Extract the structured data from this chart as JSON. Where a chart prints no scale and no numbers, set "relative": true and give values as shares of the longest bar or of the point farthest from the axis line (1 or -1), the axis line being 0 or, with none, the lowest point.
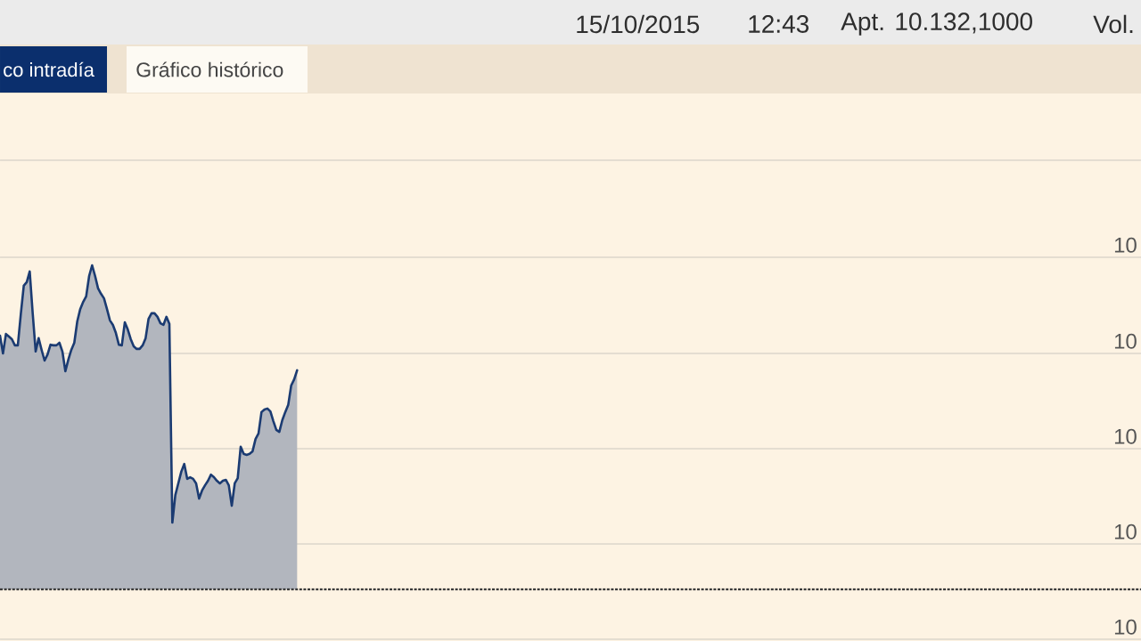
{
  "chart_data": {
    "type": "area",
    "relative": true,
    "color": "#1b3b72",
    "categories": [
      null,
      null,
      null,
      null,
      null,
      null,
      null,
      null,
      null,
      null,
      null,
      null,
      null,
      null,
      null,
      null,
      null,
      null,
      null,
      null,
      null,
      null,
      null,
      null,
      null,
      null,
      null,
      null,
      null,
      null,
      null,
      null,
      null,
      null,
      null,
      null,
      null,
      null,
      null,
      null,
      null,
      null,
      null,
      null,
      null,
      null,
      null,
      null,
      null,
      null,
      null,
      null,
      null,
      null,
      null,
      null,
      null,
      null,
      null,
      null,
      null,
      null,
      null,
      null,
      null,
      null,
      null,
      null,
      null,
      null,
      null,
      null,
      null,
      null,
      null,
      null,
      null,
      null,
      null,
      null,
      null,
      null,
      null,
      null,
      null,
      null,
      null,
      null,
      null,
      null,
      null,
      null,
      null,
      null,
      null,
      null,
      null,
      null,
      null,
      null,
      null,
      null,
      null,
      null,
      null,
      null,
      null,
      null,
      null,
      null,
      null,
      null,
      null,
      null,
      null,
      null,
      null,
      null,
      null,
      null,
      null,
      null,
      null,
      null,
      null,
      null,
      null,
      null,
      null,
      null,
      null,
      null,
      null,
      null,
      null,
      null,
      null,
      null,
      null,
      null,
      null,
      null,
      null,
      null,
      null,
      null,
      null,
      null,
      null,
      null,
      null,
      null,
      null,
      null,
      null,
      null,
      null,
      null,
      null,
      null,
      null,
      null,
      null,
      null,
      null,
      null,
      null,
      null,
      null,
      null,
      null,
      null,
      null,
      null,
      null,
      null,
      null,
      null,
      null,
      null,
      null,
      null,
      null,
      null,
      null,
      null,
      null,
      null,
      null,
      null,
      null,
      null,
      null,
      null,
      null,
      null,
      null,
      null,
      null,
      null,
      null,
      null,
      null,
      null,
      null,
      null,
      null,
      null,
      null,
      null,
      null,
      null,
      null,
      null,
      null,
      null,
      null,
      null,
      null,
      null,
      null,
      null,
      null,
      null,
      null,
      null,
      null,
      null,
      null,
      null,
      null,
      null,
      null,
      null,
      null,
      null,
      null,
      null,
      null,
      null,
      null,
      null,
      null,
      null,
      null,
      null,
      null,
      null,
      null,
      null,
      null,
      null,
      null,
      null,
      null,
      null,
      null,
      null,
      null,
      null,
      null,
      null,
      null,
      null,
      null,
      null,
      null,
      null,
      null,
      null,
      null,
      null,
      null,
      null,
      null,
      null,
      null,
      null,
      null,
      null,
      null,
      null,
      null,
      null,
      null,
      null,
      null,
      null,
      null,
      null,
      null,
      null,
      null,
      null,
      null,
      null,
      null,
      null,
      null,
      null,
      null,
      null,
      null,
      null,
      null,
      null,
      null,
      null,
      null,
      null,
      null,
      null,
      null,
      null,
      null,
      null,
      null,
      null,
      null,
      null,
      null,
      null,
      null,
      null,
      null,
      null,
      null,
      null,
      null,
      null,
      null,
      null,
      null,
      null,
      null,
      null,
      null,
      null,
      null,
      null,
      null,
      null,
      null,
      null,
      null,
      null,
      null,
      null,
      null,
      null,
      null,
      null,
      null,
      null,
      null,
      null,
      null,
      null,
      null,
      null,
      null,
      null,
      null,
      null,
      null,
      null,
      null,
      null,
      null,
      null,
      null,
      null,
      null,
      null,
      null,
      null,
      null,
      null,
      null,
      null,
      null,
      null,
      null,
      null,
      null
    ],
    "values": [
      0.783,
      0.728,
      0.788,
      0.78,
      0.772,
      0.753,
      0.753,
      0.849,
      0.937,
      0.948,
      0.981,
      0.852,
      0.734,
      0.775,
      0.739,
      0.706,
      0.725,
      0.755,
      0.753,
      0.753,
      0.761,
      0.734,
      0.673,
      0.709,
      0.739,
      0.761,
      0.827,
      0.865,
      0.887,
      0.904,
      0.967,
      1.0,
      0.967,
      0.929,
      0.912,
      0.898,
      0.865,
      0.83,
      0.816,
      0.791,
      0.755,
      0.753,
      0.824,
      0.802,
      0.772,
      0.75,
      0.742,
      0.742,
      0.753,
      0.775,
      0.835,
      0.852,
      0.852,
      0.841,
      0.821,
      0.816,
      0.841,
      0.819,
      0.206,
      0.291,
      0.327,
      0.363,
      0.387,
      0.341,
      0.346,
      0.341,
      0.327,
      0.28,
      0.305,
      0.321,
      0.335,
      0.354,
      0.346,
      0.335,
      0.327,
      0.335,
      0.338,
      0.321,
      0.258,
      0.327,
      0.343,
      0.44,
      0.418,
      0.415,
      0.418,
      0.426,
      0.464,
      0.481,
      0.547,
      0.555,
      0.558,
      0.549,
      0.519,
      0.492,
      0.486,
      0.522,
      0.547,
      0.569,
      0.629,
      0.648,
      0.676,
      null,
      null,
      null,
      null,
      null,
      null,
      null,
      null,
      null,
      null,
      null,
      null,
      null,
      null,
      null,
      null,
      null,
      null,
      null,
      null,
      null,
      null,
      null,
      null,
      null,
      null,
      null,
      null,
      null,
      null,
      null,
      null,
      null,
      null,
      null,
      null,
      null,
      null,
      null,
      null,
      null,
      null,
      null,
      null,
      null,
      null,
      null,
      null,
      null,
      null,
      null,
      null,
      null,
      null,
      null,
      null,
      null,
      null,
      null,
      null,
      null,
      null,
      null,
      null,
      null,
      null,
      null,
      null,
      null,
      null,
      null,
      null,
      null,
      null,
      null,
      null,
      null,
      null,
      null,
      null,
      null,
      null,
      null,
      null,
      null,
      null,
      null,
      null,
      null,
      null,
      null,
      null,
      null,
      null,
      null,
      null,
      null,
      null,
      null,
      null,
      null,
      null,
      null,
      null,
      null,
      null,
      null,
      null,
      null,
      null,
      null,
      null,
      null,
      null,
      null,
      null,
      null,
      null,
      null,
      null,
      null,
      null,
      null,
      null,
      null,
      null,
      null,
      null,
      null,
      null,
      null,
      null,
      null,
      null,
      null,
      null,
      null,
      null,
      null,
      null,
      null,
      null,
      null,
      null,
      null,
      null,
      null,
      null,
      null,
      null,
      null,
      null,
      null,
      null,
      null,
      null,
      null,
      null,
      null,
      null,
      null,
      null,
      null,
      null,
      null,
      null,
      null,
      null,
      null,
      null,
      null,
      null,
      null,
      null,
      null,
      null,
      null,
      null,
      null,
      null,
      null,
      null,
      null,
      null,
      null,
      null,
      null,
      null,
      null,
      null,
      null,
      null,
      null,
      null,
      null,
      null,
      null,
      null,
      null,
      null,
      null,
      null,
      null,
      null,
      null,
      null,
      null,
      null,
      null,
      null,
      null,
      null,
      null,
      null,
      null,
      null,
      null,
      null,
      null,
      null,
      null,
      null,
      null,
      null,
      null,
      null,
      null,
      null,
      null,
      null,
      null,
      null,
      null,
      null,
      null,
      null,
      null,
      null,
      null,
      null,
      null,
      null,
      null,
      null,
      null,
      null,
      null,
      null,
      null,
      null,
      null,
      null,
      null,
      null,
      null,
      null,
      null,
      null,
      null,
      null,
      null,
      null,
      null,
      null,
      null,
      null,
      null,
      null,
      null,
      null,
      null,
      null,
      null,
      null,
      null,
      null,
      null,
      null,
      null,
      null,
      null,
      null,
      null,
      null
    ],
    "grid": "y",
    "ref_lines": [
      {
        "axis": "y",
        "value": 0,
        "line_style": "dashed",
        "color": "#3a3a3a"
      }
    ],
    "annotations": [
      "co intradía",
      "Gráfico histórico",
      "15/10/2015",
      "12:43",
      "Apt. 10.132,1000",
      "Vol.",
      "10",
      "10",
      "10",
      "10",
      "10"
    ]
  }
}
